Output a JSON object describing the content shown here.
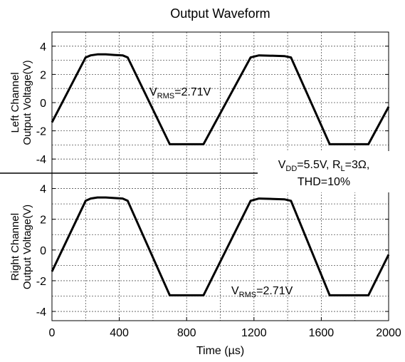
{
  "chart_data": {
    "type": "line",
    "title": "Output Waveform",
    "xlabel": "Time (µs)",
    "xlim": [
      0,
      2000
    ],
    "x_ticks": [
      "0",
      "400",
      "800",
      "1200",
      "1600",
      "2000"
    ],
    "grid": true,
    "condition": {
      "line1_parts": [
        {
          "t": "V",
          "sub": false
        },
        {
          "t": "DD",
          "sub": true
        },
        {
          "t": "=5.5V, R",
          "sub": false
        },
        {
          "t": "L",
          "sub": true
        },
        {
          "t": "=3Ω,",
          "sub": false
        }
      ],
      "line2": "THD=10%"
    },
    "panels": [
      {
        "ylabel": [
          "Left Channel",
          "Output Voltage(V)"
        ],
        "ylim": [
          -5,
          5
        ],
        "y_ticks": [
          4,
          2,
          0,
          -2,
          -4
        ],
        "annotation": {
          "base": "V",
          "sub": "RMS",
          "rest": "=2.71V"
        },
        "x": [
          0,
          200,
          230,
          270,
          320,
          370,
          420,
          450,
          700,
          900,
          1180,
          1230,
          1380,
          1420,
          1650,
          1880,
          2000
        ],
        "y": [
          -1.4,
          3.2,
          3.35,
          3.42,
          3.42,
          3.38,
          3.35,
          3.2,
          -2.95,
          -2.95,
          3.2,
          3.35,
          3.3,
          3.2,
          -2.95,
          -2.95,
          -0.3
        ]
      },
      {
        "ylabel": [
          "Right Channel",
          "Output Voltage(V)"
        ],
        "ylim": [
          -4.6,
          5
        ],
        "y_ticks": [
          4,
          2,
          0,
          -2,
          -4
        ],
        "annotation": {
          "base": "V",
          "sub": "RMS",
          "rest": "=2.71V"
        },
        "x": [
          0,
          200,
          230,
          270,
          320,
          370,
          420,
          450,
          700,
          900,
          1180,
          1230,
          1380,
          1420,
          1650,
          1880,
          2000
        ],
        "y": [
          -1.4,
          3.2,
          3.35,
          3.42,
          3.42,
          3.38,
          3.35,
          3.2,
          -2.95,
          -2.95,
          3.2,
          3.35,
          3.3,
          3.2,
          -2.95,
          -2.95,
          -0.3
        ]
      }
    ]
  }
}
